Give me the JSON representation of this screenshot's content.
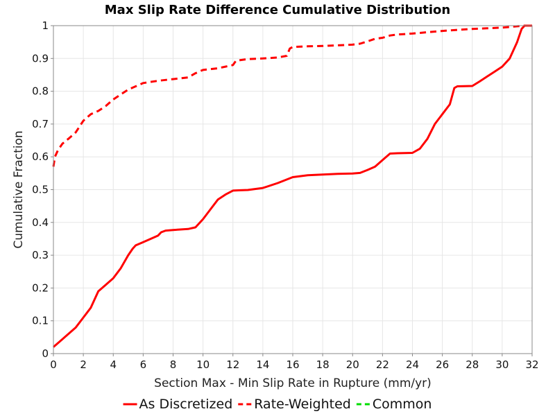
{
  "chart_data": {
    "type": "line",
    "title": "Max Slip Rate Difference Cumulative Distribution",
    "xlabel": "Section Max - Min Slip Rate in Rupture (mm/yr)",
    "ylabel": "Cumulative Fraction",
    "xlim": [
      0,
      32
    ],
    "ylim": [
      0,
      1
    ],
    "xticks": [
      0,
      2,
      4,
      6,
      8,
      10,
      12,
      14,
      16,
      18,
      20,
      22,
      24,
      26,
      28,
      30,
      32
    ],
    "yticks": [
      0,
      0.1,
      0.2,
      0.3,
      0.4,
      0.5,
      0.6,
      0.7,
      0.8,
      0.9,
      1
    ],
    "ytick_labels": [
      "0",
      "0.1",
      "0.2",
      "0.3",
      "0.4",
      "0.5",
      "0.6",
      "0.7",
      "0.8",
      "0.9",
      "1"
    ],
    "grid": true,
    "legend_position": "bottom",
    "series": [
      {
        "name": "As Discretized",
        "color": "#ff0000",
        "dash": "solid",
        "x": [
          0,
          0.5,
          1.0,
          1.5,
          2.0,
          2.5,
          3.0,
          3.5,
          4.0,
          4.5,
          5.0,
          5.3,
          5.5,
          6.0,
          6.5,
          7.0,
          7.2,
          7.5,
          8.0,
          9.0,
          9.5,
          10.0,
          10.5,
          11.0,
          11.5,
          12.0,
          12.5,
          13.0,
          14.0,
          15.0,
          16.0,
          17.0,
          18.0,
          19.0,
          20.0,
          20.5,
          21.0,
          21.5,
          22.0,
          22.5,
          23.0,
          24.0,
          24.5,
          25.0,
          25.5,
          26.0,
          26.5,
          26.8,
          27.0,
          28.0,
          28.5,
          29.0,
          29.5,
          30.0,
          30.5,
          31.0,
          31.3,
          31.5,
          32.0
        ],
        "y": [
          0.02,
          0.04,
          0.06,
          0.08,
          0.11,
          0.14,
          0.19,
          0.21,
          0.23,
          0.26,
          0.3,
          0.32,
          0.33,
          0.34,
          0.35,
          0.36,
          0.37,
          0.375,
          0.377,
          0.38,
          0.385,
          0.41,
          0.44,
          0.47,
          0.485,
          0.497,
          0.498,
          0.499,
          0.505,
          0.52,
          0.538,
          0.544,
          0.546,
          0.548,
          0.549,
          0.551,
          0.56,
          0.57,
          0.59,
          0.61,
          0.611,
          0.612,
          0.625,
          0.655,
          0.7,
          0.73,
          0.76,
          0.81,
          0.815,
          0.816,
          0.83,
          0.845,
          0.86,
          0.875,
          0.9,
          0.95,
          0.99,
          1.0,
          1.0
        ]
      },
      {
        "name": "Rate-Weighted",
        "color": "#ff0000",
        "dash": "dashed",
        "x": [
          0,
          0.1,
          0.3,
          0.6,
          1.0,
          1.5,
          2.0,
          2.5,
          3.0,
          3.5,
          4.0,
          4.5,
          5.0,
          5.5,
          6.0,
          7.0,
          8.0,
          9.0,
          9.5,
          10.0,
          11.0,
          11.5,
          12.0,
          12.2,
          13.0,
          14.0,
          15.0,
          15.6,
          15.8,
          16.0,
          17.0,
          18.0,
          19.0,
          20.0,
          20.5,
          21.0,
          21.5,
          22.0,
          22.5,
          23.0,
          24.0,
          25.0,
          26.0,
          27.0,
          28.0,
          29.0,
          30.0,
          30.5,
          31.0,
          31.5,
          32.0
        ],
        "y": [
          0.57,
          0.6,
          0.62,
          0.64,
          0.655,
          0.675,
          0.71,
          0.73,
          0.74,
          0.755,
          0.775,
          0.79,
          0.805,
          0.815,
          0.825,
          0.832,
          0.837,
          0.842,
          0.855,
          0.865,
          0.87,
          0.875,
          0.88,
          0.893,
          0.898,
          0.9,
          0.903,
          0.908,
          0.93,
          0.935,
          0.937,
          0.938,
          0.94,
          0.942,
          0.945,
          0.952,
          0.96,
          0.963,
          0.97,
          0.973,
          0.976,
          0.98,
          0.984,
          0.987,
          0.99,
          0.992,
          0.994,
          0.996,
          0.998,
          1.0,
          1.0
        ]
      },
      {
        "name": "Common",
        "color": "#00dd00",
        "dash": "dashed",
        "x": [],
        "y": []
      }
    ]
  }
}
